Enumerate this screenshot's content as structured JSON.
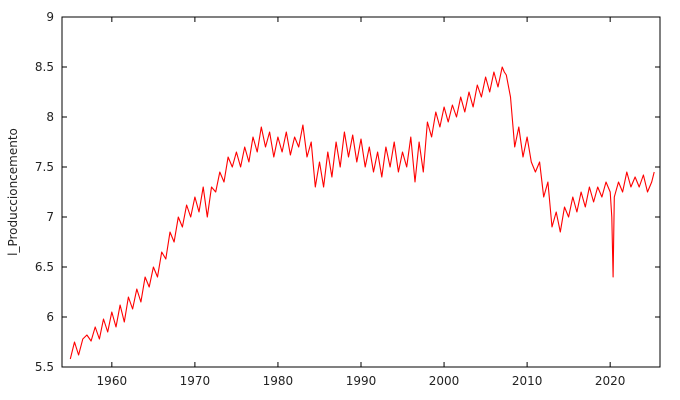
{
  "chart_data": {
    "type": "line",
    "ylabel": "l_Produccioncemento",
    "xlim": [
      1954,
      2026
    ],
    "ylim": [
      5.5,
      9
    ],
    "xticks": [
      1960,
      1970,
      1980,
      1990,
      2000,
      2010,
      2020
    ],
    "yticks": [
      5.5,
      6,
      6.5,
      7,
      7.5,
      8,
      8.5,
      9
    ],
    "grid": false,
    "legend": "none",
    "line_color": "#ff0000",
    "series": [
      {
        "x": [
          1955.0,
          1955.5,
          1956.0,
          1956.5,
          1957.0,
          1957.5,
          1958.0,
          1958.5,
          1959.0,
          1959.5,
          1960.0,
          1960.5,
          1961.0,
          1961.5,
          1962.0,
          1962.5,
          1963.0,
          1963.5,
          1964.0,
          1964.5,
          1965.0,
          1965.5,
          1966.0,
          1966.5,
          1967.0,
          1967.5,
          1968.0,
          1968.5,
          1969.0,
          1969.5,
          1970.0,
          1970.5,
          1971.0,
          1971.5,
          1972.0,
          1972.5,
          1973.0,
          1973.5,
          1974.0,
          1974.5,
          1975.0,
          1975.5,
          1976.0,
          1976.5,
          1977.0,
          1977.5,
          1978.0,
          1978.5,
          1979.0,
          1979.5,
          1980.0,
          1980.5,
          1981.0,
          1981.5,
          1982.0,
          1982.5,
          1983.0,
          1983.5,
          1984.0,
          1984.5,
          1985.0,
          1985.5,
          1986.0,
          1986.5,
          1987.0,
          1987.5,
          1988.0,
          1988.5,
          1989.0,
          1989.5,
          1990.0,
          1990.5,
          1991.0,
          1991.5,
          1992.0,
          1992.5,
          1993.0,
          1993.5,
          1994.0,
          1994.5,
          1995.0,
          1995.5,
          1996.0,
          1996.5,
          1997.0,
          1997.5,
          1998.0,
          1998.5,
          1999.0,
          1999.5,
          2000.0,
          2000.5,
          2001.0,
          2001.5,
          2002.0,
          2002.5,
          2003.0,
          2003.5,
          2004.0,
          2004.5,
          2005.0,
          2005.5,
          2006.0,
          2006.5,
          2007.0,
          2007.25,
          2007.5,
          2008.0,
          2008.5,
          2009.0,
          2009.5,
          2010.0,
          2010.5,
          2011.0,
          2011.5,
          2012.0,
          2012.5,
          2013.0,
          2013.5,
          2014.0,
          2014.5,
          2015.0,
          2015.5,
          2016.0,
          2016.5,
          2017.0,
          2017.5,
          2018.0,
          2018.5,
          2019.0,
          2019.5,
          2020.0,
          2020.2,
          2020.35,
          2020.5,
          2021.0,
          2021.5,
          2022.0,
          2022.5,
          2023.0,
          2023.5,
          2024.0,
          2024.5,
          2025.0,
          2025.3
        ],
        "y": [
          5.58,
          5.75,
          5.62,
          5.78,
          5.82,
          5.76,
          5.9,
          5.78,
          5.98,
          5.85,
          6.05,
          5.9,
          6.12,
          5.95,
          6.2,
          6.08,
          6.28,
          6.15,
          6.4,
          6.3,
          6.5,
          6.4,
          6.65,
          6.58,
          6.85,
          6.75,
          7.0,
          6.9,
          7.12,
          7.0,
          7.2,
          7.05,
          7.3,
          7.0,
          7.3,
          7.25,
          7.45,
          7.35,
          7.6,
          7.5,
          7.65,
          7.5,
          7.7,
          7.55,
          7.8,
          7.65,
          7.9,
          7.7,
          7.85,
          7.6,
          7.8,
          7.65,
          7.85,
          7.62,
          7.8,
          7.7,
          7.92,
          7.6,
          7.75,
          7.3,
          7.55,
          7.3,
          7.65,
          7.4,
          7.75,
          7.5,
          7.85,
          7.6,
          7.82,
          7.55,
          7.78,
          7.5,
          7.7,
          7.45,
          7.65,
          7.4,
          7.7,
          7.5,
          7.75,
          7.45,
          7.65,
          7.5,
          7.8,
          7.35,
          7.75,
          7.45,
          7.95,
          7.8,
          8.05,
          7.9,
          8.1,
          7.95,
          8.12,
          8.0,
          8.2,
          8.05,
          8.25,
          8.1,
          8.32,
          8.2,
          8.4,
          8.25,
          8.45,
          8.3,
          8.5,
          8.45,
          8.42,
          8.2,
          7.7,
          7.9,
          7.6,
          7.8,
          7.55,
          7.45,
          7.55,
          7.2,
          7.35,
          6.9,
          7.05,
          6.85,
          7.1,
          7.0,
          7.2,
          7.05,
          7.25,
          7.1,
          7.3,
          7.15,
          7.3,
          7.2,
          7.35,
          7.25,
          7.0,
          6.4,
          7.2,
          7.35,
          7.25,
          7.45,
          7.3,
          7.4,
          7.3,
          7.42,
          7.25,
          7.35,
          7.45
        ]
      }
    ]
  }
}
